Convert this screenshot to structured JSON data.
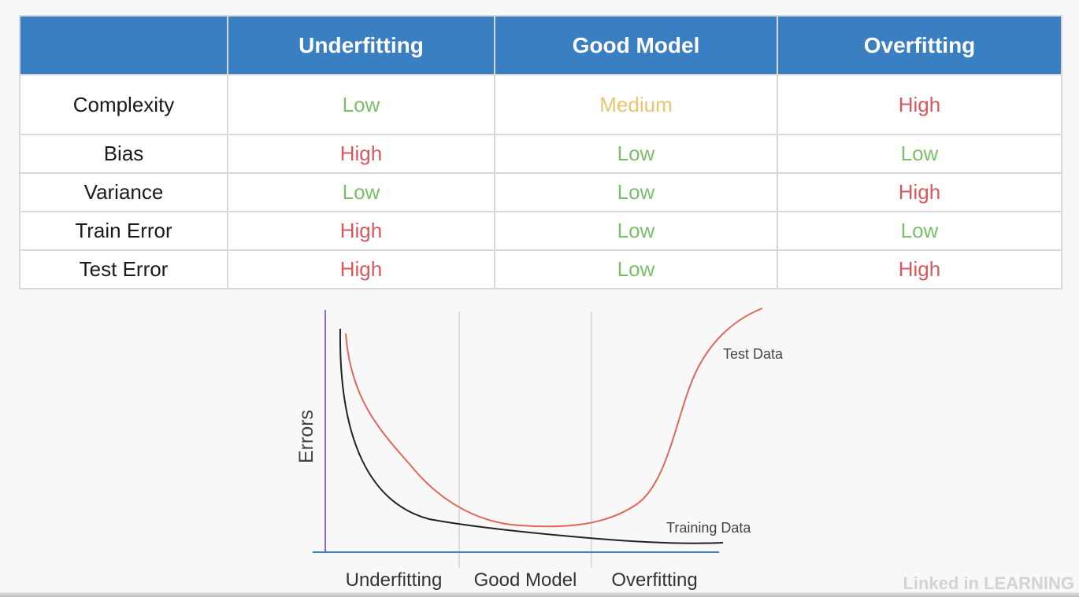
{
  "table": {
    "headers": [
      "",
      "Underfitting",
      "Good Model",
      "Overfitting"
    ],
    "rows": [
      {
        "label": "Complexity",
        "cells": [
          {
            "text": "Low",
            "color": "#7cbf6a"
          },
          {
            "text": "Medium",
            "color": "#e6c76e"
          },
          {
            "text": "High",
            "color": "#d9585c"
          }
        ]
      },
      {
        "label": "Bias",
        "cells": [
          {
            "text": "High",
            "color": "#d9585c"
          },
          {
            "text": "Low",
            "color": "#7cbf6a"
          },
          {
            "text": "Low",
            "color": "#7cbf6a"
          }
        ]
      },
      {
        "label": "Variance",
        "cells": [
          {
            "text": "Low",
            "color": "#7cbf6a"
          },
          {
            "text": "Low",
            "color": "#7cbf6a"
          },
          {
            "text": "High",
            "color": "#d9585c"
          }
        ]
      },
      {
        "label": "Train Error",
        "cells": [
          {
            "text": "High",
            "color": "#d9585c"
          },
          {
            "text": "Low",
            "color": "#7cbf6a"
          },
          {
            "text": "Low",
            "color": "#7cbf6a"
          }
        ]
      },
      {
        "label": "Test Error",
        "cells": [
          {
            "text": "High",
            "color": "#d9585c"
          },
          {
            "text": "Low",
            "color": "#7cbf6a"
          },
          {
            "text": "High",
            "color": "#d9585c"
          }
        ]
      }
    ]
  },
  "diagram": {
    "ylabel": "Errors",
    "regions": [
      "Underfitting",
      "Good Model",
      "Overfitting"
    ],
    "curves": [
      {
        "name": "Test Data",
        "color": "#e0685a"
      },
      {
        "name": "Training Data",
        "color": "#222222"
      }
    ],
    "colors": {
      "y_axis": "#8e6ad0",
      "x_axis": "#3a7fc1",
      "dividers": "#d6d6d6"
    }
  },
  "branding": "Linked in LEARNING"
}
